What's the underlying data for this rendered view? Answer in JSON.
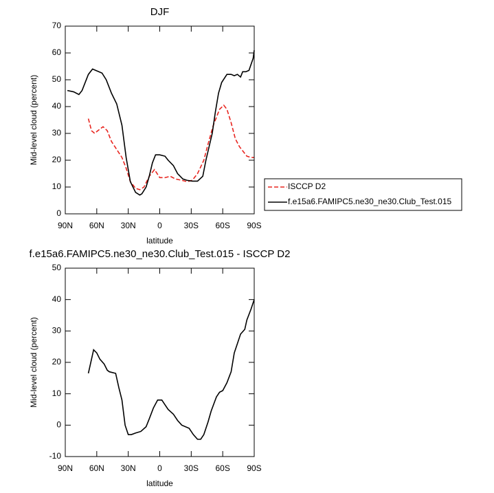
{
  "chart_data": [
    {
      "type": "line",
      "title": "DJF",
      "x_label": "latitude",
      "y_label": "Mid-level cloud (percent)",
      "xlim": [
        90,
        -90
      ],
      "xticks": [
        {
          "value": 90,
          "label": "90N"
        },
        {
          "value": 60,
          "label": "60N"
        },
        {
          "value": 30,
          "label": "30N"
        },
        0,
        {
          "value": -30,
          "label": "30S"
        },
        {
          "value": -60,
          "label": "60S"
        },
        {
          "value": -90,
          "label": "90S"
        }
      ],
      "ylim": [
        0,
        70
      ],
      "yticks": [
        0,
        10,
        20,
        30,
        40,
        50,
        60,
        70
      ],
      "legend": "right",
      "series": [
        {
          "name": "ISCCP D2",
          "color": "#e8251f",
          "dash": "dashed",
          "x": [
            68,
            65,
            62,
            59,
            54,
            50,
            46,
            41,
            36,
            32,
            28,
            23,
            19,
            15,
            10,
            5,
            0,
            -5,
            -10,
            -15,
            -21,
            -26,
            -31,
            -36,
            -42,
            -46,
            -51,
            -55,
            -57,
            -61,
            -64,
            -68,
            -72,
            -76,
            -80,
            -83,
            -87,
            -90
          ],
          "values": [
            35.5,
            31,
            30,
            31,
            32.5,
            31,
            27,
            24,
            21,
            17,
            12,
            9.5,
            9,
            10,
            14,
            16.5,
            13.5,
            13.5,
            14,
            13,
            12.5,
            12,
            12.5,
            15,
            20,
            26,
            33,
            37,
            39,
            40.5,
            39,
            34,
            28,
            25,
            23,
            21.5,
            21,
            21
          ]
        },
        {
          "name": "f.e15a6.FAMIPC5.ne30_ne30.Club_Test.015",
          "color": "#000000",
          "dash": "solid",
          "x": [
            88,
            82,
            77,
            74,
            68,
            64,
            61,
            55,
            51,
            46,
            41,
            36,
            32,
            28,
            23,
            19,
            17,
            13,
            10,
            7,
            4,
            0,
            -5,
            -8,
            -13,
            -17,
            -22,
            -26,
            -31,
            -36,
            -41,
            -44,
            -50,
            -53,
            -56,
            -59,
            -64,
            -68,
            -71,
            -74,
            -77,
            -79,
            -82,
            -85,
            -89,
            -90
          ],
          "values": [
            46,
            45.5,
            44.5,
            46,
            52,
            54,
            53.5,
            52.5,
            50,
            45,
            41,
            33,
            21,
            12,
            8,
            7,
            7.5,
            10,
            14,
            19,
            22,
            22,
            21.5,
            20,
            18,
            15,
            13,
            12.5,
            12.2,
            12.2,
            14,
            20,
            30,
            38,
            45,
            49,
            52,
            52,
            51.5,
            52,
            51,
            53,
            53,
            53.5,
            58,
            61
          ]
        }
      ]
    },
    {
      "type": "line",
      "title": "f.e15a6.FAMIPC5.ne30_ne30.Club_Test.015 - ISCCP D2",
      "x_label": "latitude",
      "y_label": "Mid-level cloud (percent)",
      "xlim": [
        90,
        -90
      ],
      "xticks": [
        {
          "value": 90,
          "label": "90N"
        },
        {
          "value": 60,
          "label": "60N"
        },
        {
          "value": 30,
          "label": "30N"
        },
        0,
        {
          "value": -30,
          "label": "30S"
        },
        {
          "value": -60,
          "label": "60S"
        },
        {
          "value": -90,
          "label": "90S"
        }
      ],
      "ylim": [
        -10,
        50
      ],
      "yticks": [
        -10,
        0,
        10,
        20,
        30,
        40,
        50
      ],
      "series": [
        {
          "color": "#000000",
          "dash": "solid",
          "x": [
            68,
            65,
            63,
            60,
            57,
            53,
            50,
            48,
            42,
            39,
            36,
            33,
            30,
            27,
            23,
            18,
            13,
            10,
            6,
            2,
            -2,
            -5,
            -8,
            -13,
            -17,
            -21,
            -28,
            -32,
            -36,
            -39,
            -42,
            -46,
            -49,
            -54,
            -57,
            -60,
            -64,
            -68,
            -71,
            -74,
            -77,
            -81,
            -83,
            -87,
            -90
          ],
          "values": [
            16.5,
            21,
            24,
            23,
            21,
            19.5,
            17.5,
            17,
            16.5,
            12,
            8,
            0,
            -3,
            -3,
            -2.5,
            -2,
            -0.5,
            2,
            5.5,
            8,
            8,
            6.5,
            5,
            3.5,
            1.5,
            0,
            -1,
            -3,
            -4.5,
            -4.5,
            -3,
            1,
            4.5,
            9,
            10.5,
            11,
            13.5,
            17,
            23,
            26,
            29,
            30.5,
            33.5,
            37,
            40
          ]
        }
      ]
    }
  ]
}
